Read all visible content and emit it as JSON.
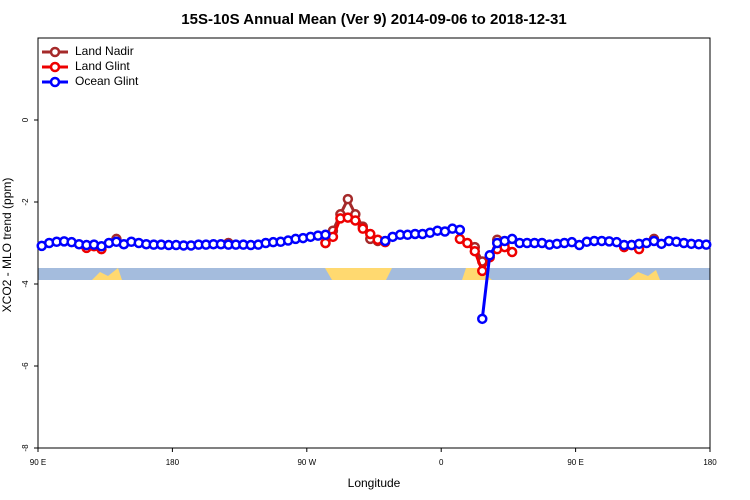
{
  "chart_data": {
    "type": "line",
    "title": "15S-10S Annual Mean (Ver 9)   2014-09-06 to 2018-12-31",
    "xlabel": "Longitude",
    "ylabel": "XCO2 - MLO trend (ppm)",
    "xlim": [
      90,
      540
    ],
    "ylim": [
      -8,
      2
    ],
    "xticks": [
      {
        "value": 90,
        "label": "90 E"
      },
      180,
      {
        "value": 270,
        "label": "90 W"
      },
      {
        "value": 360,
        "label": "0"
      },
      {
        "value": 450,
        "label": "90 E"
      },
      {
        "value": 540,
        "label": "180"
      }
    ],
    "yticks": [
      0,
      -2,
      -4,
      -6,
      -8
    ],
    "legend": "top-left",
    "x": [
      92.5,
      97.5,
      102.5,
      107.5,
      112.5,
      117.5,
      122.5,
      127.5,
      132.5,
      137.5,
      142.5,
      147.5,
      152.5,
      157.5,
      162.5,
      167.5,
      172.5,
      177.5,
      182.5,
      187.5,
      192.5,
      197.5,
      202.5,
      207.5,
      212.5,
      217.5,
      222.5,
      227.5,
      232.5,
      237.5,
      242.5,
      247.5,
      252.5,
      257.5,
      262.5,
      267.5,
      272.5,
      277.5,
      282.5,
      287.5,
      292.5,
      297.5,
      302.5,
      307.5,
      312.5,
      317.5,
      322.5,
      327.5,
      332.5,
      337.5,
      342.5,
      347.5,
      352.5,
      357.5,
      362.5,
      367.5,
      372.5,
      377.5,
      382.5,
      387.5,
      392.5,
      397.5,
      402.5,
      407.5,
      412.5,
      417.5,
      422.5,
      427.5,
      432.5,
      437.5,
      442.5,
      447.5,
      452.5,
      457.5,
      462.5,
      467.5,
      472.5,
      477.5,
      482.5,
      487.5,
      492.5,
      497.5,
      502.5,
      507.5,
      512.5,
      517.5,
      522.5,
      527.5,
      532.5,
      537.5
    ],
    "series": [
      {
        "name": "Land Nadir",
        "color": "#a52a2a",
        "values": [
          null,
          null,
          null,
          null,
          null,
          null,
          null,
          null,
          null,
          null,
          -2.9,
          null,
          null,
          null,
          null,
          null,
          null,
          null,
          null,
          null,
          null,
          null,
          null,
          null,
          null,
          -3.0,
          null,
          null,
          null,
          null,
          null,
          null,
          null,
          null,
          null,
          null,
          null,
          null,
          -3.0,
          -2.7,
          -2.3,
          -1.93,
          -2.3,
          -2.6,
          -2.9,
          -2.95,
          null,
          null,
          null,
          null,
          null,
          null,
          null,
          null,
          null,
          null,
          null,
          null,
          -3.1,
          -3.45,
          null,
          -2.92,
          -3.0,
          null,
          null,
          null,
          null,
          null,
          null,
          null,
          null,
          null,
          null,
          null,
          null,
          null,
          null,
          null,
          null,
          null,
          null,
          null,
          -2.9,
          null,
          null,
          null,
          null,
          null,
          null,
          null
        ]
      },
      {
        "name": "Land Glint",
        "color": "#ee0000",
        "values": [
          null,
          null,
          null,
          null,
          null,
          null,
          -3.12,
          -3.08,
          -3.15,
          null,
          null,
          null,
          null,
          null,
          null,
          null,
          null,
          null,
          null,
          null,
          null,
          null,
          null,
          null,
          null,
          null,
          null,
          null,
          null,
          null,
          null,
          null,
          null,
          null,
          null,
          null,
          null,
          null,
          -3.0,
          -2.85,
          -2.4,
          -2.38,
          -2.45,
          -2.65,
          -2.78,
          -2.92,
          -2.98,
          null,
          null,
          null,
          null,
          null,
          null,
          null,
          null,
          null,
          -2.9,
          -3.0,
          -3.2,
          -3.68,
          -3.35,
          -3.15,
          -3.1,
          -3.22,
          null,
          null,
          null,
          null,
          null,
          null,
          null,
          null,
          null,
          null,
          null,
          null,
          null,
          null,
          -3.1,
          -3.05,
          -3.15,
          null,
          null,
          null,
          null,
          null,
          null,
          null,
          null,
          null
        ]
      },
      {
        "name": "Ocean Glint",
        "color": "#0000ff",
        "values": [
          -3.07,
          -3.0,
          -2.97,
          -2.96,
          -2.98,
          -3.03,
          -3.05,
          -3.04,
          -3.08,
          -3.0,
          -2.97,
          -3.03,
          -2.97,
          -3.0,
          -3.03,
          -3.04,
          -3.04,
          -3.05,
          -3.05,
          -3.06,
          -3.06,
          -3.04,
          -3.04,
          -3.03,
          -3.03,
          -3.04,
          -3.04,
          -3.04,
          -3.05,
          -3.04,
          -3.0,
          -2.98,
          -2.97,
          -2.94,
          -2.9,
          -2.88,
          -2.85,
          -2.82,
          -2.8,
          null,
          null,
          null,
          null,
          null,
          null,
          null,
          -2.95,
          -2.85,
          -2.8,
          -2.8,
          -2.78,
          -2.78,
          -2.75,
          -2.7,
          -2.72,
          -2.65,
          -2.68,
          null,
          null,
          -4.85,
          -3.3,
          -3.0,
          -2.95,
          -2.9,
          -3.0,
          -3.0,
          -3.0,
          -3.0,
          -3.04,
          -3.02,
          -3.0,
          -2.98,
          -3.05,
          -2.97,
          -2.95,
          -2.95,
          -2.96,
          -2.98,
          -3.05,
          -3.05,
          -3.02,
          -3.0,
          -2.95,
          -3.02,
          -2.95,
          -2.97,
          -3.0,
          -3.02,
          -3.03,
          -3.04
        ]
      }
    ]
  }
}
